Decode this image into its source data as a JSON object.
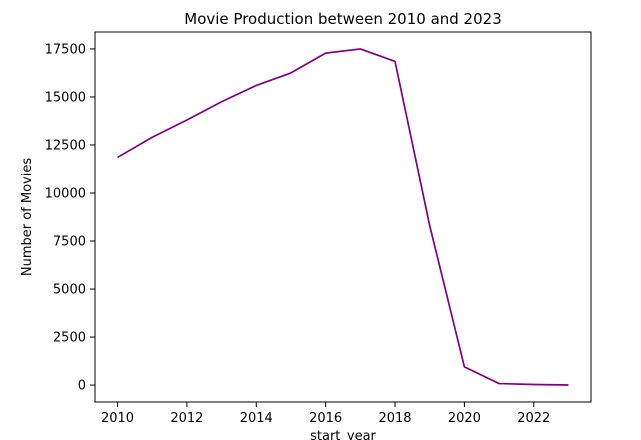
{
  "chart_data": {
    "type": "line",
    "title": "Movie Production  between 2010 and 2023",
    "xlabel": "start_year",
    "ylabel": "Number of Movies",
    "x": [
      2010,
      2011,
      2012,
      2013,
      2014,
      2015,
      2016,
      2017,
      2018,
      2019,
      2020,
      2021,
      2022,
      2023
    ],
    "series": [
      {
        "name": "",
        "values": [
          11850,
          12900,
          13800,
          14750,
          15600,
          16250,
          17280,
          17500,
          16850,
          8300,
          950,
          80,
          30,
          5
        ],
        "color": "#800080"
      }
    ],
    "xticks": [
      2010,
      2012,
      2014,
      2016,
      2018,
      2020,
      2022
    ],
    "yticks": [
      0,
      2500,
      5000,
      7500,
      10000,
      12500,
      15000,
      17500
    ],
    "xlim": [
      2009.35,
      2023.65
    ],
    "ylim": [
      -880,
      18380
    ],
    "grid": false,
    "legend": "none"
  }
}
